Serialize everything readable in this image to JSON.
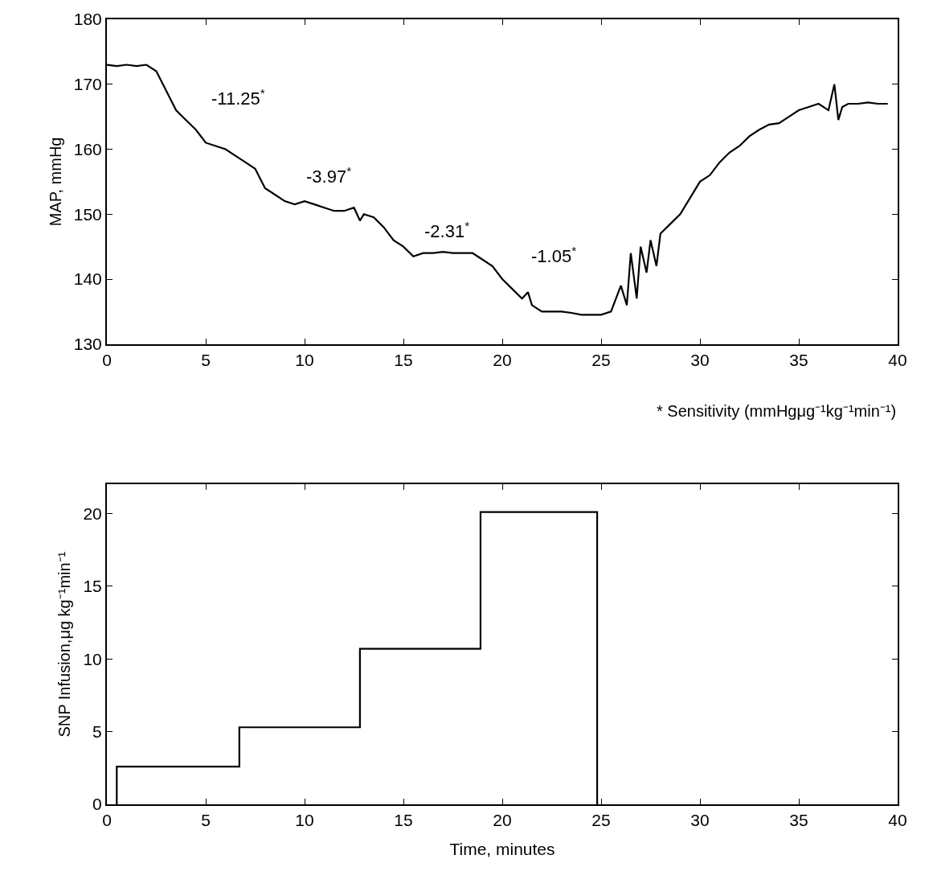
{
  "chart_data": [
    {
      "type": "line",
      "ylabel": "MAP, mmHg",
      "xlim": [
        0,
        40
      ],
      "ylim": [
        130,
        180
      ],
      "xticks": [
        0,
        5,
        10,
        15,
        20,
        25,
        30,
        35,
        40
      ],
      "yticks": [
        130,
        140,
        150,
        160,
        170,
        180
      ],
      "marker": "none",
      "line_style": "solid",
      "series": [
        {
          "color": "#000000",
          "x": [
            0,
            0.5,
            1,
            1.5,
            2,
            2.5,
            3,
            3.5,
            4,
            4.5,
            5,
            5.5,
            6,
            6.5,
            7,
            7.5,
            8,
            8.5,
            9,
            9.5,
            10,
            10.5,
            11,
            11.5,
            12,
            12.5,
            12.8,
            13,
            13.5,
            14,
            14.5,
            15,
            15.5,
            16,
            16.5,
            17,
            17.5,
            18,
            18.5,
            19,
            19.5,
            20,
            20.5,
            21,
            21.3,
            21.5,
            22,
            22.5,
            23,
            23.5,
            24,
            24.5,
            25,
            25.5,
            26,
            26.3,
            26.5,
            26.8,
            27,
            27.3,
            27.5,
            27.8,
            28,
            28.5,
            29,
            29.5,
            30,
            30.5,
            31,
            31.5,
            32,
            32.5,
            33,
            33.5,
            34,
            34.5,
            35,
            35.5,
            36,
            36.5,
            36.8,
            37,
            37.2,
            37.5,
            38,
            38.5,
            39,
            39.5
          ],
          "values": [
            173,
            172.8,
            173,
            172.8,
            173,
            172,
            169,
            166,
            164.5,
            163,
            161,
            160.5,
            160,
            159,
            158,
            157,
            154,
            153,
            152,
            151.5,
            152,
            151.5,
            151,
            150.5,
            150.5,
            151,
            149,
            150,
            149.5,
            148,
            146,
            145,
            143.5,
            144,
            144,
            144.2,
            144,
            144,
            144,
            143,
            142,
            140,
            138.5,
            137,
            138,
            136,
            135,
            135,
            135,
            134.8,
            134.5,
            134.5,
            134.5,
            135,
            139,
            136,
            144,
            137,
            145,
            141,
            146,
            142,
            147,
            148.5,
            150,
            152.5,
            155,
            156,
            158,
            159.5,
            160.5,
            162,
            163,
            163.8,
            164,
            165,
            166,
            166.5,
            167,
            166,
            170,
            164.5,
            166.5,
            167,
            167,
            167.2,
            167,
            167
          ]
        }
      ],
      "annotations": [
        "-11.25$^{*}$",
        "-3.97$^{*}$",
        "-2.31$^{*}$",
        "-1.05$^{*}$",
        "* Sensitivity (mmHgμg⁻¹kg⁻¹min⁻¹)"
      ]
    },
    {
      "type": "step",
      "xlabel": "Time, minutes",
      "ylabel": "SNP Infusion,μg kg⁻¹min⁻¹",
      "xlim": [
        0,
        40
      ],
      "ylim": [
        0,
        22
      ],
      "xticks": [
        0,
        5,
        10,
        15,
        20,
        25,
        30,
        35,
        40
      ],
      "yticks": [
        0,
        5,
        10,
        15,
        20
      ],
      "marker": "none",
      "line_style": "solid",
      "series": [
        {
          "color": "#000000",
          "x": [
            0.5,
            0.5,
            6.7,
            12.8,
            18.9,
            24.8
          ],
          "values": [
            0,
            2.6,
            5.3,
            10.7,
            20.1,
            0
          ]
        }
      ]
    }
  ]
}
